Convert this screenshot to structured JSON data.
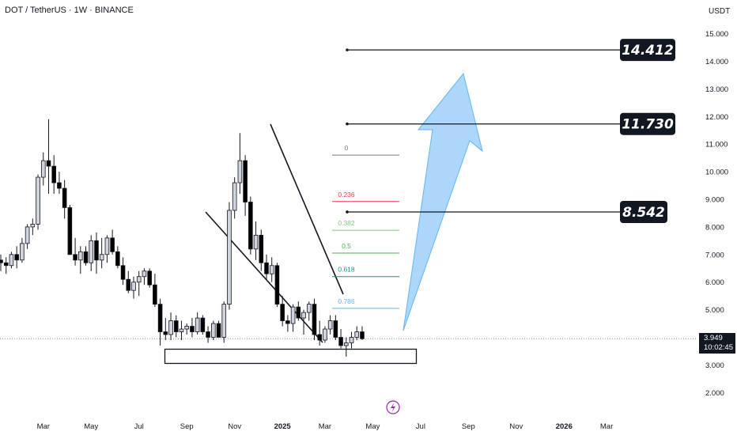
{
  "header": {
    "symbol": "DOT / TetherUS · 1W · BINANCE",
    "currency": "USDT"
  },
  "price_tag": {
    "price": "3.949",
    "countdown": "10:02:45"
  },
  "targets": [
    {
      "label": "14.412",
      "value": 14.412
    },
    {
      "label": "11.730",
      "value": 11.73
    },
    {
      "label": "8.542",
      "value": 8.542
    }
  ],
  "fib_levels": [
    {
      "label": "0",
      "value": 10.6,
      "color": "#787b86"
    },
    {
      "label": "0.236",
      "value": 8.92,
      "color": "#f23645"
    },
    {
      "label": "0.382",
      "value": 7.88,
      "color": "#81c784"
    },
    {
      "label": "0.5",
      "value": 7.05,
      "color": "#4caf50"
    },
    {
      "label": "0.618",
      "value": 6.2,
      "color": "#089981"
    },
    {
      "label": "0.786",
      "value": 5.05,
      "color": "#64b5f6"
    }
  ],
  "colors": {
    "up": "#d1d4dc",
    "down": "#000000",
    "arrow": "#90caf9",
    "text": "#131722"
  },
  "chart_data": {
    "type": "candlestick",
    "title": "DOT / TetherUS · 1W · BINANCE",
    "ylabel": "USDT",
    "ylim": [
      1.5,
      15.5
    ],
    "y_ticks": [
      "15.000",
      "14.000",
      "13.000",
      "12.000",
      "11.000",
      "10.000",
      "9.000",
      "8.000",
      "7.000",
      "6.000",
      "5.000",
      "4.000",
      "3.000",
      "2.000"
    ],
    "x_ticks": [
      {
        "label": "Mar",
        "bold": false,
        "week": 8
      },
      {
        "label": "May",
        "bold": false,
        "week": 17
      },
      {
        "label": "Jul",
        "bold": false,
        "week": 26
      },
      {
        "label": "Sep",
        "bold": false,
        "week": 35
      },
      {
        "label": "Nov",
        "bold": false,
        "week": 44
      },
      {
        "label": "2025",
        "bold": true,
        "week": 53
      },
      {
        "label": "Mar",
        "bold": false,
        "week": 61
      },
      {
        "label": "May",
        "bold": false,
        "week": 70
      },
      {
        "label": "Jul",
        "bold": false,
        "week": 79
      },
      {
        "label": "Sep",
        "bold": false,
        "week": 88
      },
      {
        "label": "Nov",
        "bold": false,
        "week": 97
      },
      {
        "label": "2026",
        "bold": true,
        "week": 106
      },
      {
        "label": "Mar",
        "bold": false,
        "week": 114
      }
    ],
    "candles": [
      [
        6.8,
        7.0,
        6.4,
        6.7
      ],
      [
        6.7,
        6.9,
        6.3,
        6.6
      ],
      [
        6.6,
        7.1,
        6.5,
        7.0
      ],
      [
        7.0,
        7.3,
        6.5,
        6.8
      ],
      [
        6.8,
        7.6,
        6.7,
        7.4
      ],
      [
        7.4,
        8.1,
        7.2,
        8.0
      ],
      [
        8.0,
        8.3,
        7.7,
        8.1
      ],
      [
        8.1,
        9.9,
        7.9,
        9.8
      ],
      [
        9.8,
        10.7,
        9.5,
        10.4
      ],
      [
        10.4,
        11.9,
        9.2,
        10.2
      ],
      [
        10.2,
        10.6,
        9.2,
        9.6
      ],
      [
        9.6,
        10.0,
        9.2,
        9.4
      ],
      [
        9.4,
        9.7,
        8.3,
        8.7
      ],
      [
        8.7,
        8.8,
        7.0,
        7.0
      ],
      [
        7.0,
        7.6,
        6.6,
        6.8
      ],
      [
        6.8,
        7.3,
        6.3,
        7.1
      ],
      [
        7.1,
        7.3,
        6.6,
        6.7
      ],
      [
        6.7,
        7.7,
        6.4,
        7.5
      ],
      [
        7.5,
        7.8,
        6.3,
        6.8
      ],
      [
        6.8,
        7.6,
        6.5,
        7.0
      ],
      [
        7.0,
        7.7,
        6.7,
        7.6
      ],
      [
        7.6,
        7.9,
        7.0,
        7.1
      ],
      [
        7.1,
        7.3,
        6.5,
        6.6
      ],
      [
        6.6,
        6.9,
        5.9,
        6.1
      ],
      [
        6.1,
        6.4,
        5.6,
        5.7
      ],
      [
        5.7,
        6.2,
        5.4,
        6.0
      ],
      [
        6.0,
        6.4,
        5.5,
        6.2
      ],
      [
        6.2,
        6.5,
        5.9,
        6.4
      ],
      [
        6.4,
        6.5,
        5.8,
        5.9
      ],
      [
        5.9,
        6.3,
        5.1,
        5.2
      ],
      [
        5.2,
        5.4,
        3.7,
        4.2
      ],
      [
        4.2,
        4.7,
        3.9,
        4.1
      ],
      [
        4.1,
        4.9,
        3.9,
        4.6
      ],
      [
        4.6,
        4.8,
        4.0,
        4.2
      ],
      [
        4.2,
        4.6,
        3.9,
        4.3
      ],
      [
        4.3,
        4.5,
        4.1,
        4.4
      ],
      [
        4.4,
        4.7,
        4.0,
        4.2
      ],
      [
        4.2,
        4.9,
        4.1,
        4.7
      ],
      [
        4.7,
        4.8,
        4.1,
        4.2
      ],
      [
        4.2,
        4.4,
        3.8,
        4.0
      ],
      [
        4.0,
        4.6,
        3.9,
        4.5
      ],
      [
        4.5,
        4.6,
        4.0,
        4.0
      ],
      [
        4.0,
        5.3,
        3.8,
        5.2
      ],
      [
        5.2,
        8.9,
        5.0,
        8.6
      ],
      [
        8.6,
        9.8,
        8.3,
        9.6
      ],
      [
        9.6,
        11.4,
        9.2,
        10.4
      ],
      [
        10.4,
        10.6,
        8.4,
        8.9
      ],
      [
        8.9,
        9.1,
        7.0,
        7.2
      ],
      [
        7.2,
        8.2,
        6.8,
        7.7
      ],
      [
        7.7,
        7.9,
        6.4,
        6.7
      ],
      [
        6.7,
        7.0,
        6.1,
        6.3
      ],
      [
        6.3,
        6.9,
        6.0,
        6.6
      ],
      [
        6.6,
        6.7,
        5.1,
        5.2
      ],
      [
        5.2,
        5.5,
        4.4,
        4.6
      ],
      [
        4.6,
        4.8,
        4.2,
        4.5
      ],
      [
        4.5,
        5.2,
        4.2,
        5.1
      ],
      [
        5.1,
        5.3,
        4.6,
        4.7
      ],
      [
        4.7,
        5.0,
        4.1,
        4.9
      ],
      [
        4.9,
        5.3,
        4.6,
        5.2
      ],
      [
        5.2,
        5.4,
        3.9,
        4.1
      ],
      [
        4.1,
        4.6,
        3.7,
        3.9
      ],
      [
        3.9,
        4.4,
        3.8,
        4.3
      ],
      [
        4.3,
        4.8,
        4.1,
        4.6
      ],
      [
        4.6,
        4.8,
        3.9,
        4.0
      ],
      [
        4.0,
        4.3,
        3.6,
        3.7
      ],
      [
        3.7,
        4.0,
        3.3,
        3.8
      ],
      [
        3.8,
        4.2,
        3.6,
        4.0
      ],
      [
        4.0,
        4.4,
        3.9,
        4.2
      ],
      [
        4.2,
        4.4,
        3.9,
        3.95
      ]
    ]
  }
}
